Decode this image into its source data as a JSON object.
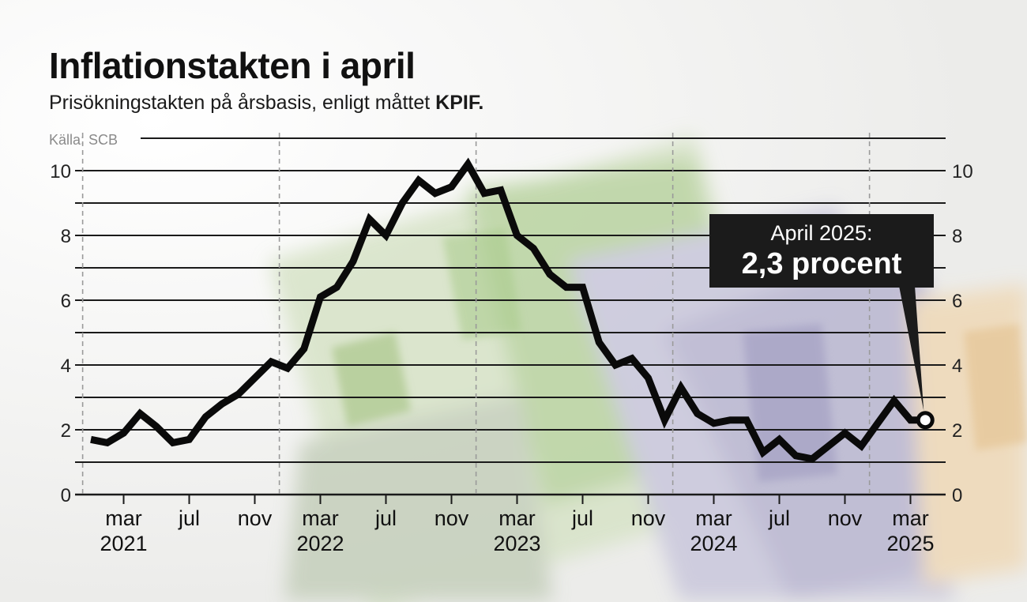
{
  "header": {
    "title": "Inflationstakten i april",
    "subtitle_text": "Prisökningstakten på årsbasis, enligt måttet",
    "subtitle_bold": "KPIF.",
    "source": "Källa: SCB"
  },
  "callout": {
    "line1": "April 2025:",
    "line2": "2,3 procent"
  },
  "colors": {
    "line": "#0a0a0a",
    "grid": "#1a1a1a",
    "dashed": "#9a9a9a",
    "callout_bg": "#1b1b1b",
    "background": "#f6f6f4"
  },
  "chart_data": {
    "type": "line",
    "title": "Inflationstakten i april",
    "subtitle": "Prisökningstakten på årsbasis, enligt måttet KPIF.",
    "source": "Källa: SCB",
    "xlabel": "",
    "ylabel": "",
    "ylim": [
      0,
      10
    ],
    "y_ticks": [
      0,
      2,
      4,
      6,
      8,
      10
    ],
    "grid": true,
    "x_ticks": [
      {
        "label": "mar",
        "year": "2021",
        "date": "2021-03"
      },
      {
        "label": "jul",
        "year": "",
        "date": "2021-07"
      },
      {
        "label": "nov",
        "year": "",
        "date": "2021-11"
      },
      {
        "label": "mar",
        "year": "2022",
        "date": "2022-03"
      },
      {
        "label": "jul",
        "year": "",
        "date": "2022-07"
      },
      {
        "label": "nov",
        "year": "",
        "date": "2022-11"
      },
      {
        "label": "mar",
        "year": "2023",
        "date": "2023-03"
      },
      {
        "label": "jul",
        "year": "",
        "date": "2023-07"
      },
      {
        "label": "nov",
        "year": "",
        "date": "2023-11"
      },
      {
        "label": "mar",
        "year": "2024",
        "date": "2024-03"
      },
      {
        "label": "jul",
        "year": "",
        "date": "2024-07"
      },
      {
        "label": "nov",
        "year": "",
        "date": "2024-11"
      },
      {
        "label": "mar",
        "year": "2025",
        "date": "2025-03"
      }
    ],
    "series": [
      {
        "x": [
          "2021-01",
          "2021-02",
          "2021-03",
          "2021-04",
          "2021-05",
          "2021-06",
          "2021-07",
          "2021-08",
          "2021-09",
          "2021-10",
          "2021-11",
          "2021-12",
          "2022-01",
          "2022-02",
          "2022-03",
          "2022-04",
          "2022-05",
          "2022-06",
          "2022-07",
          "2022-08",
          "2022-09",
          "2022-10",
          "2022-11",
          "2022-12",
          "2023-01",
          "2023-02",
          "2023-03",
          "2023-04",
          "2023-05",
          "2023-06",
          "2023-07",
          "2023-08",
          "2023-09",
          "2023-10",
          "2023-11",
          "2023-12",
          "2024-01",
          "2024-02",
          "2024-03",
          "2024-04",
          "2024-05",
          "2024-06",
          "2024-07",
          "2024-08",
          "2024-09",
          "2024-10",
          "2024-11",
          "2024-12",
          "2025-01",
          "2025-02",
          "2025-03",
          "2025-04"
        ],
        "values": [
          1.7,
          1.6,
          1.9,
          2.5,
          2.1,
          1.6,
          1.7,
          2.4,
          2.8,
          3.1,
          3.6,
          4.1,
          3.9,
          4.5,
          6.1,
          6.4,
          7.2,
          8.5,
          8.0,
          9.0,
          9.7,
          9.3,
          9.5,
          10.2,
          9.3,
          9.4,
          8.0,
          7.6,
          6.8,
          6.4,
          6.4,
          4.7,
          4.0,
          4.2,
          3.6,
          2.3,
          3.3,
          2.5,
          2.2,
          2.3,
          2.3,
          1.3,
          1.7,
          1.2,
          1.1,
          1.5,
          1.9,
          1.5,
          2.2,
          2.9,
          2.3,
          2.3
        ]
      }
    ],
    "highlight": {
      "date": "2025-04",
      "value": 2.3
    }
  }
}
